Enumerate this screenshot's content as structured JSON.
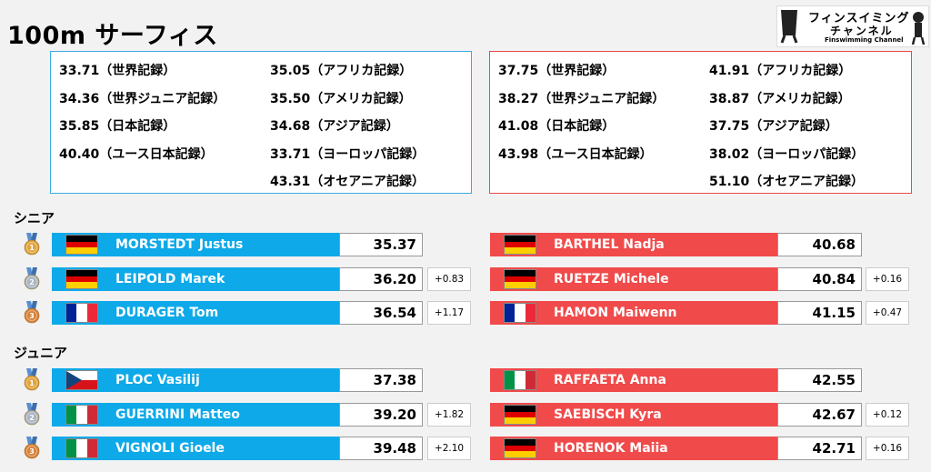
{
  "title": "100m サーフィス",
  "logo": {
    "line1": "フィンスイミング",
    "line2": "チャンネル",
    "line3": "Finswimming Channel"
  },
  "records": {
    "men": {
      "col1": [
        "33.71（世界記録）",
        "34.36（世界ジュニア記録）",
        "35.85（日本記録）",
        "40.40（ユース日本記録）"
      ],
      "col2": [
        "35.05（アフリカ記録）",
        "35.50（アメリカ記録）",
        "34.68（アジア記録）",
        "33.71（ヨーロッパ記録）",
        "43.31（オセアニア記録）"
      ]
    },
    "women": {
      "col1": [
        "37.75（世界記録）",
        "38.27（世界ジュニア記録）",
        "41.08（日本記録）",
        "43.98（ユース日本記録）"
      ],
      "col2": [
        "41.91（アフリカ記録）",
        "38.87（アメリカ記録）",
        "37.75（アジア記録）",
        "38.02（ヨーロッパ記録）",
        "51.10（オセアニア記録）"
      ]
    }
  },
  "sections": {
    "senior": "シニア",
    "junior": "ジュニア"
  },
  "medals": {
    "gold": "1",
    "silver": "2",
    "bronze": "3"
  },
  "senior": {
    "men": [
      {
        "name": "MORSTEDT Justus",
        "time": "35.37",
        "diff": "",
        "flag": "germany"
      },
      {
        "name": "LEIPOLD Marek",
        "time": "36.20",
        "diff": "+0.83",
        "flag": "germany"
      },
      {
        "name": "DURAGER Tom",
        "time": "36.54",
        "diff": "+1.17",
        "flag": "france"
      }
    ],
    "women": [
      {
        "name": "BARTHEL Nadja",
        "time": "40.68",
        "diff": "",
        "flag": "germany"
      },
      {
        "name": "RUETZE Michele",
        "time": "40.84",
        "diff": "+0.16",
        "flag": "germany"
      },
      {
        "name": "HAMON Maiwenn",
        "time": "41.15",
        "diff": "+0.47",
        "flag": "france"
      }
    ]
  },
  "junior": {
    "men": [
      {
        "name": "PLOC Vasilij",
        "time": "37.38",
        "diff": "",
        "flag": "czech-republic"
      },
      {
        "name": "GUERRINI Matteo",
        "time": "39.20",
        "diff": "+1.82",
        "flag": "italy"
      },
      {
        "name": "VIGNOLI Gioele",
        "time": "39.48",
        "diff": "+2.10",
        "flag": "italy"
      }
    ],
    "women": [
      {
        "name": "RAFFAETA Anna",
        "time": "42.55",
        "diff": "",
        "flag": "italy"
      },
      {
        "name": "SAEBISCH Kyra",
        "time": "42.67",
        "diff": "+0.12",
        "flag": "germany"
      },
      {
        "name": "HORENOK Maiia",
        "time": "42.71",
        "diff": "+0.16",
        "flag": "germany"
      }
    ]
  },
  "colors": {
    "men_band": "#0ea9e8",
    "women_band": "#f04a4a",
    "gold": "#e0a43a",
    "silver": "#a8b4c0",
    "bronze": "#d9823a"
  }
}
